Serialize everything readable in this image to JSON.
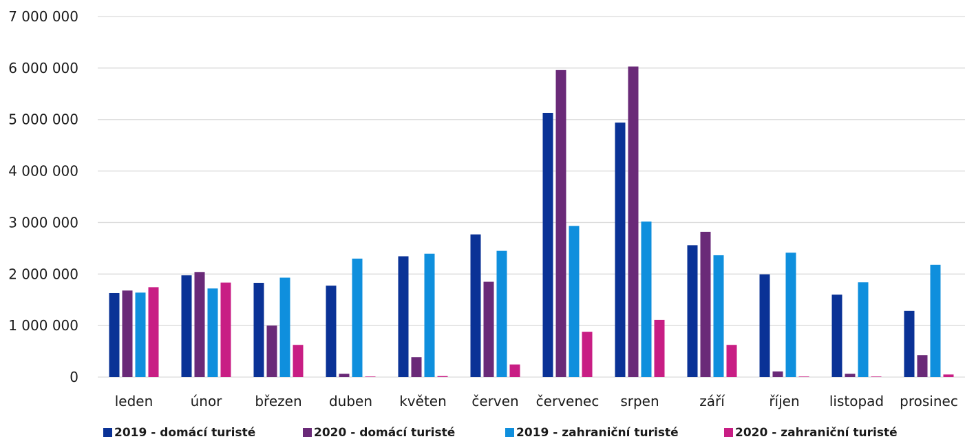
{
  "chart_data": {
    "type": "bar",
    "title": "",
    "xlabel": "",
    "ylabel": "",
    "ylim": [
      0,
      7000000
    ],
    "yticks": [
      0,
      1000000,
      2000000,
      3000000,
      4000000,
      5000000,
      6000000,
      7000000
    ],
    "ytick_labels": [
      "0",
      "1 000 000",
      "2 000 000",
      "3 000 000",
      "4 000 000",
      "5 000 000",
      "6 000 000",
      "7 000 000"
    ],
    "grid": true,
    "legend_position": "bottom",
    "categories": [
      "leden",
      "únor",
      "březen",
      "duben",
      "květen",
      "červen",
      "červenec",
      "srpen",
      "září",
      "říjen",
      "listopad",
      "prosinec"
    ],
    "series": [
      {
        "name": "2019 - domácí turisté",
        "color": "#0a3296",
        "values": [
          1630000,
          1975000,
          1830000,
          1775000,
          2345000,
          2770000,
          5130000,
          4940000,
          2560000,
          1995000,
          1600000,
          1285000
        ]
      },
      {
        "name": "2020  - domácí turisté",
        "color": "#6a2a78",
        "values": [
          1680000,
          2040000,
          1000000,
          65000,
          385000,
          1850000,
          5960000,
          6030000,
          2820000,
          110000,
          65000,
          425000
        ]
      },
      {
        "name": "2019 - zahraniční turisté",
        "color": "#0f8fdd",
        "values": [
          1640000,
          1720000,
          1930000,
          2300000,
          2395000,
          2450000,
          2935000,
          3020000,
          2365000,
          2415000,
          1840000,
          2180000
        ]
      },
      {
        "name": "2020  - zahraniční turisté",
        "color": "#c81e84",
        "values": [
          1745000,
          1835000,
          625000,
          10000,
          20000,
          245000,
          880000,
          1110000,
          625000,
          10000,
          10000,
          50000
        ]
      }
    ]
  }
}
